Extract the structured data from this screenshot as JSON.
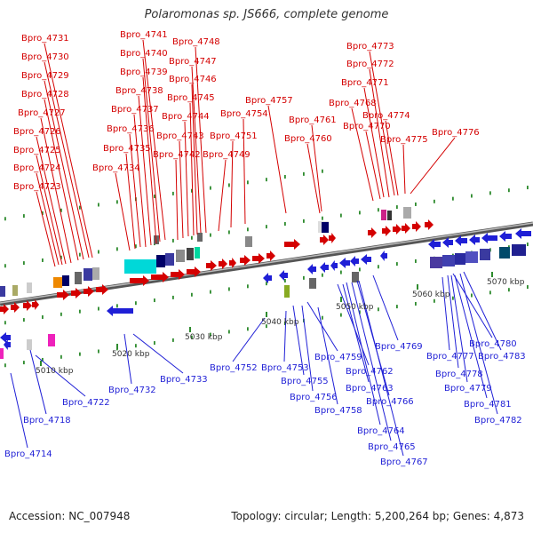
{
  "title": "Polaromonas sp. JS666, complete genome",
  "footer": {
    "accession": "Accession: NC_007948",
    "summary": "Topology: circular; Length: 5,200,264 bp; Genes: 4,873"
  },
  "colors": {
    "forward": "#d40000",
    "reverse": "#1f1fd6"
  },
  "scale_labels": [
    "5010 kbp",
    "5020 kbp",
    "5030 kbp",
    "5040 kbp",
    "5050 kbp",
    "5060 kbp",
    "5070 kbp"
  ],
  "forward_genes": [
    "Bpro_4723",
    "Bpro_4724",
    "Bpro_4725",
    "Bpro_4726",
    "Bpro_4727",
    "Bpro_4728",
    "Bpro_4729",
    "Bpro_4730",
    "Bpro_4731",
    "Bpro_4734",
    "Bpro_4735",
    "Bpro_4736",
    "Bpro_4737",
    "Bpro_4738",
    "Bpro_4739",
    "Bpro_4740",
    "Bpro_4741",
    "Bpro_4742",
    "Bpro_4743",
    "Bpro_4744",
    "Bpro_4745",
    "Bpro_4746",
    "Bpro_4747",
    "Bpro_4748",
    "Bpro_4749",
    "Bpro_4751",
    "Bpro_4754",
    "Bpro_4757",
    "Bpro_4760",
    "Bpro_4761",
    "Bpro_4768",
    "Bpro_4770",
    "Bpro_4771",
    "Bpro_4772",
    "Bpro_4773",
    "Bpro_4774",
    "Bpro_4775",
    "Bpro_4776"
  ],
  "reverse_genes": [
    "Bpro_4714",
    "Bpro_4718",
    "Bpro_4722",
    "Bpro_4732",
    "Bpro_4733",
    "Bpro_4752",
    "Bpro_4753",
    "Bpro_4755",
    "Bpro_4756",
    "Bpro_4758",
    "Bpro_4759",
    "Bpro_4762",
    "Bpro_4763",
    "Bpro_4764",
    "Bpro_4765",
    "Bpro_4766",
    "Bpro_4767",
    "Bpro_4769",
    "Bpro_4777",
    "Bpro_4778",
    "Bpro_4779",
    "Bpro_4780",
    "Bpro_4781",
    "Bpro_4782",
    "Bpro_4783"
  ]
}
